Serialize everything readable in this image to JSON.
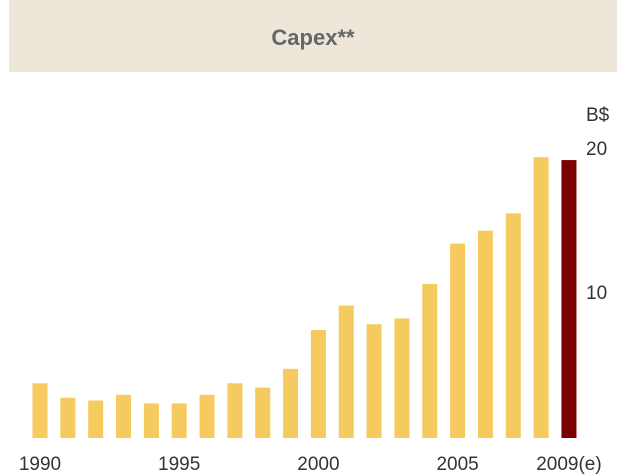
{
  "chart_data": {
    "type": "bar",
    "title": "Capex**",
    "y_unit": "B$",
    "categories": [
      "1990",
      null,
      null,
      null,
      null,
      "1995",
      null,
      null,
      null,
      null,
      "2000",
      null,
      null,
      null,
      null,
      "2005",
      null,
      null,
      null,
      "2009(e)"
    ],
    "values": [
      3.8,
      2.8,
      2.6,
      3.0,
      2.4,
      2.4,
      3.0,
      3.8,
      3.5,
      4.8,
      7.5,
      9.2,
      7.9,
      8.3,
      10.7,
      13.5,
      14.4,
      15.6,
      19.5,
      19.3
    ],
    "colors": [
      "#f5ca5e",
      "#f5ca5e",
      "#f5ca5e",
      "#f5ca5e",
      "#f5ca5e",
      "#f5ca5e",
      "#f5ca5e",
      "#f5ca5e",
      "#f5ca5e",
      "#f5ca5e",
      "#f5ca5e",
      "#f5ca5e",
      "#f5ca5e",
      "#f5ca5e",
      "#f5ca5e",
      "#f5ca5e",
      "#f5ca5e",
      "#f5ca5e",
      "#f5ca5e",
      "#7a0000"
    ],
    "ylim": [
      0,
      20
    ],
    "yticks": [
      10,
      20
    ],
    "grid": false
  }
}
